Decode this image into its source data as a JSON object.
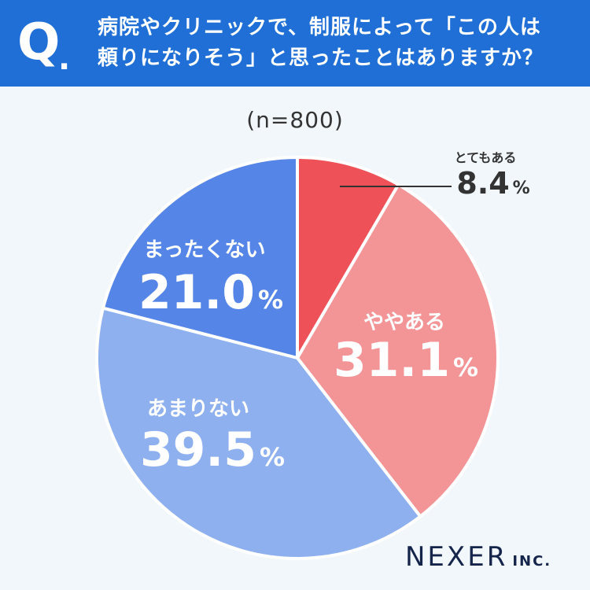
{
  "header": {
    "q_mark": "Q",
    "question_line1": "病院やクリニックで、制服によって「この人は",
    "question_line2": "頼りになりそう」と思ったことはありますか？"
  },
  "sample_size": "(n=800)",
  "logo": {
    "main": "NEXER",
    "sub": "INC."
  },
  "colors": {
    "header_bg": "#1f6fd6",
    "slice_1": "#ee5157",
    "slice_2": "#f39597",
    "slice_3": "#8fb0ef",
    "slice_4": "#5585e6"
  },
  "chart_data": {
    "type": "pie",
    "unit": "%",
    "slices": [
      {
        "label": "とてもある",
        "value": 8.4,
        "color": "#ee5157"
      },
      {
        "label": "ややある",
        "value": 31.1,
        "color": "#f39597"
      },
      {
        "label": "あまりない",
        "value": 39.5,
        "color": "#8fb0ef"
      },
      {
        "label": "まったくない",
        "value": 21.0,
        "color": "#5585e6"
      }
    ]
  }
}
